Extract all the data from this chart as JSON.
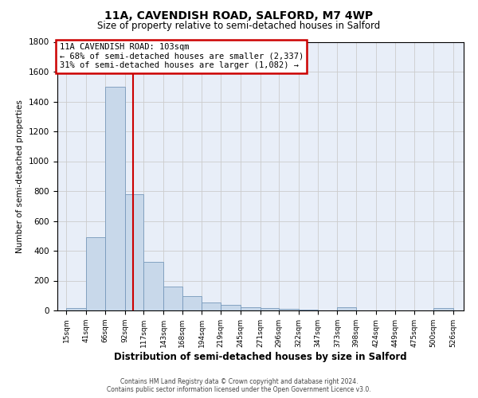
{
  "title": "11A, CAVENDISH ROAD, SALFORD, M7 4WP",
  "subtitle": "Size of property relative to semi-detached houses in Salford",
  "xlabel": "Distribution of semi-detached houses by size in Salford",
  "ylabel": "Number of semi-detached properties",
  "bar_color": "#c8d8ea",
  "bar_edge_color": "#7799bb",
  "bar_left_edges": [
    15,
    41,
    66,
    92,
    117,
    143,
    168,
    194,
    219,
    245,
    271,
    296,
    322,
    347,
    373,
    398,
    424,
    449,
    475,
    500
  ],
  "bar_widths": [
    26,
    25,
    26,
    25,
    26,
    25,
    26,
    25,
    26,
    26,
    25,
    26,
    25,
    26,
    25,
    26,
    25,
    26,
    25,
    26
  ],
  "bar_heights": [
    15,
    490,
    1500,
    780,
    325,
    160,
    95,
    55,
    35,
    20,
    15,
    10,
    5,
    2,
    20,
    1,
    0,
    0,
    0,
    15
  ],
  "x_tick_labels": [
    "15sqm",
    "41sqm",
    "66sqm",
    "92sqm",
    "117sqm",
    "143sqm",
    "168sqm",
    "194sqm",
    "219sqm",
    "245sqm",
    "271sqm",
    "296sqm",
    "322sqm",
    "347sqm",
    "373sqm",
    "398sqm",
    "424sqm",
    "449sqm",
    "475sqm",
    "500sqm",
    "526sqm"
  ],
  "x_tick_positions": [
    15,
    41,
    66,
    92,
    117,
    143,
    168,
    194,
    219,
    245,
    271,
    296,
    322,
    347,
    373,
    398,
    424,
    449,
    475,
    500,
    526
  ],
  "ylim": [
    0,
    1800
  ],
  "xlim": [
    3,
    540
  ],
  "red_line_x": 103,
  "annotation_title": "11A CAVENDISH ROAD: 103sqm",
  "annotation_line1": "← 68% of semi-detached houses are smaller (2,337)",
  "annotation_line2": "31% of semi-detached houses are larger (1,082) →",
  "annotation_box_facecolor": "#ffffff",
  "annotation_box_edgecolor": "#cc0000",
  "red_line_color": "#cc0000",
  "grid_color": "#cccccc",
  "background_color": "#e8eef8",
  "footer_line1": "Contains HM Land Registry data © Crown copyright and database right 2024.",
  "footer_line2": "Contains public sector information licensed under the Open Government Licence v3.0.",
  "ytick_values": [
    0,
    200,
    400,
    600,
    800,
    1000,
    1200,
    1400,
    1600,
    1800
  ]
}
